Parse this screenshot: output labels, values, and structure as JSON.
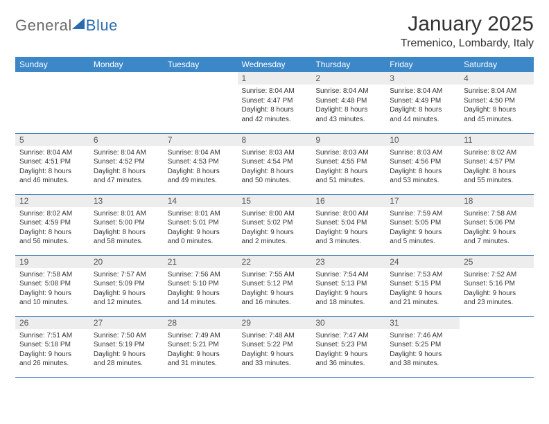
{
  "logo": {
    "part1": "General",
    "part2": "Blue"
  },
  "header": {
    "title": "January 2025",
    "location": "Tremenico, Lombardy, Italy"
  },
  "calendar": {
    "columns": [
      "Sunday",
      "Monday",
      "Tuesday",
      "Wednesday",
      "Thursday",
      "Friday",
      "Saturday"
    ],
    "header_bg": "#3b87c8",
    "header_fg": "#ffffff",
    "border_color": "#2a6bb0",
    "daynum_bg": "#ededed",
    "body_fontsize": 10,
    "cells": [
      [
        null,
        null,
        null,
        {
          "n": "1",
          "sr": "8:04 AM",
          "ss": "4:47 PM",
          "dh": "8",
          "dm": "42"
        },
        {
          "n": "2",
          "sr": "8:04 AM",
          "ss": "4:48 PM",
          "dh": "8",
          "dm": "43"
        },
        {
          "n": "3",
          "sr": "8:04 AM",
          "ss": "4:49 PM",
          "dh": "8",
          "dm": "44"
        },
        {
          "n": "4",
          "sr": "8:04 AM",
          "ss": "4:50 PM",
          "dh": "8",
          "dm": "45"
        }
      ],
      [
        {
          "n": "5",
          "sr": "8:04 AM",
          "ss": "4:51 PM",
          "dh": "8",
          "dm": "46"
        },
        {
          "n": "6",
          "sr": "8:04 AM",
          "ss": "4:52 PM",
          "dh": "8",
          "dm": "47"
        },
        {
          "n": "7",
          "sr": "8:04 AM",
          "ss": "4:53 PM",
          "dh": "8",
          "dm": "49"
        },
        {
          "n": "8",
          "sr": "8:03 AM",
          "ss": "4:54 PM",
          "dh": "8",
          "dm": "50"
        },
        {
          "n": "9",
          "sr": "8:03 AM",
          "ss": "4:55 PM",
          "dh": "8",
          "dm": "51"
        },
        {
          "n": "10",
          "sr": "8:03 AM",
          "ss": "4:56 PM",
          "dh": "8",
          "dm": "53"
        },
        {
          "n": "11",
          "sr": "8:02 AM",
          "ss": "4:57 PM",
          "dh": "8",
          "dm": "55"
        }
      ],
      [
        {
          "n": "12",
          "sr": "8:02 AM",
          "ss": "4:59 PM",
          "dh": "8",
          "dm": "56"
        },
        {
          "n": "13",
          "sr": "8:01 AM",
          "ss": "5:00 PM",
          "dh": "8",
          "dm": "58"
        },
        {
          "n": "14",
          "sr": "8:01 AM",
          "ss": "5:01 PM",
          "dh": "9",
          "dm": "0"
        },
        {
          "n": "15",
          "sr": "8:00 AM",
          "ss": "5:02 PM",
          "dh": "9",
          "dm": "2"
        },
        {
          "n": "16",
          "sr": "8:00 AM",
          "ss": "5:04 PM",
          "dh": "9",
          "dm": "3"
        },
        {
          "n": "17",
          "sr": "7:59 AM",
          "ss": "5:05 PM",
          "dh": "9",
          "dm": "5"
        },
        {
          "n": "18",
          "sr": "7:58 AM",
          "ss": "5:06 PM",
          "dh": "9",
          "dm": "7"
        }
      ],
      [
        {
          "n": "19",
          "sr": "7:58 AM",
          "ss": "5:08 PM",
          "dh": "9",
          "dm": "10"
        },
        {
          "n": "20",
          "sr": "7:57 AM",
          "ss": "5:09 PM",
          "dh": "9",
          "dm": "12"
        },
        {
          "n": "21",
          "sr": "7:56 AM",
          "ss": "5:10 PM",
          "dh": "9",
          "dm": "14"
        },
        {
          "n": "22",
          "sr": "7:55 AM",
          "ss": "5:12 PM",
          "dh": "9",
          "dm": "16"
        },
        {
          "n": "23",
          "sr": "7:54 AM",
          "ss": "5:13 PM",
          "dh": "9",
          "dm": "18"
        },
        {
          "n": "24",
          "sr": "7:53 AM",
          "ss": "5:15 PM",
          "dh": "9",
          "dm": "21"
        },
        {
          "n": "25",
          "sr": "7:52 AM",
          "ss": "5:16 PM",
          "dh": "9",
          "dm": "23"
        }
      ],
      [
        {
          "n": "26",
          "sr": "7:51 AM",
          "ss": "5:18 PM",
          "dh": "9",
          "dm": "26"
        },
        {
          "n": "27",
          "sr": "7:50 AM",
          "ss": "5:19 PM",
          "dh": "9",
          "dm": "28"
        },
        {
          "n": "28",
          "sr": "7:49 AM",
          "ss": "5:21 PM",
          "dh": "9",
          "dm": "31"
        },
        {
          "n": "29",
          "sr": "7:48 AM",
          "ss": "5:22 PM",
          "dh": "9",
          "dm": "33"
        },
        {
          "n": "30",
          "sr": "7:47 AM",
          "ss": "5:23 PM",
          "dh": "9",
          "dm": "36"
        },
        {
          "n": "31",
          "sr": "7:46 AM",
          "ss": "5:25 PM",
          "dh": "9",
          "dm": "38"
        },
        null
      ]
    ],
    "labels": {
      "sunrise": "Sunrise:",
      "sunset": "Sunset:",
      "daylight": "Daylight:",
      "hours_word": "hours",
      "and_word": "and",
      "minutes_word": "minutes."
    }
  }
}
